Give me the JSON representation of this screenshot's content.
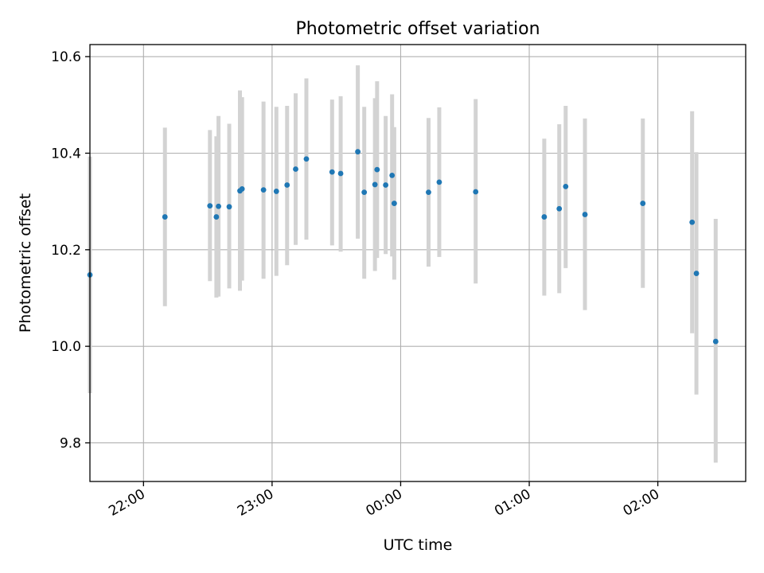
{
  "chart_data": {
    "type": "scatter",
    "title": "Photometric offset variation",
    "xlabel": "UTC time",
    "ylabel": "Photometric offset",
    "x_axis": {
      "kind": "time",
      "range": [
        "21:35",
        "02:41"
      ],
      "ticks": [
        "22:00",
        "23:00",
        "00:00",
        "01:00",
        "02:00"
      ],
      "tick_rotation_deg": 30
    },
    "y_axis": {
      "range": [
        9.72,
        10.625
      ],
      "ticks": [
        9.8,
        10.0,
        10.2,
        10.4,
        10.6
      ],
      "tick_labels": [
        "9.8",
        "10.0",
        "10.2",
        "10.4",
        "10.6"
      ]
    },
    "grid": true,
    "legend": "none",
    "colors": {
      "points": "#1f77b4",
      "errorbars": "#d3d3d3"
    },
    "series": [
      {
        "points": [
          {
            "t": "21:35",
            "y": 10.148,
            "lo": 9.903,
            "hi": 10.393
          },
          {
            "t": "22:10",
            "y": 10.268,
            "lo": 10.083,
            "hi": 10.453
          },
          {
            "t": "22:31",
            "y": 10.291,
            "lo": 10.135,
            "hi": 10.448
          },
          {
            "t": "22:34",
            "y": 10.268,
            "lo": 10.101,
            "hi": 10.435
          },
          {
            "t": "22:35",
            "y": 10.29,
            "lo": 10.103,
            "hi": 10.477
          },
          {
            "t": "22:40",
            "y": 10.289,
            "lo": 10.12,
            "hi": 10.461
          },
          {
            "t": "22:45",
            "y": 10.322,
            "lo": 10.115,
            "hi": 10.53
          },
          {
            "t": "22:46",
            "y": 10.326,
            "lo": 10.136,
            "hi": 10.516
          },
          {
            "t": "22:56",
            "y": 10.324,
            "lo": 10.14,
            "hi": 10.507
          },
          {
            "t": "23:02",
            "y": 10.321,
            "lo": 10.146,
            "hi": 10.496
          },
          {
            "t": "23:07",
            "y": 10.334,
            "lo": 10.168,
            "hi": 10.498
          },
          {
            "t": "23:11",
            "y": 10.367,
            "lo": 10.21,
            "hi": 10.524
          },
          {
            "t": "23:16",
            "y": 10.388,
            "lo": 10.221,
            "hi": 10.555
          },
          {
            "t": "23:28",
            "y": 10.361,
            "lo": 10.209,
            "hi": 10.511
          },
          {
            "t": "23:32",
            "y": 10.358,
            "lo": 10.196,
            "hi": 10.518
          },
          {
            "t": "23:40",
            "y": 10.403,
            "lo": 10.223,
            "hi": 10.582
          },
          {
            "t": "23:43",
            "y": 10.319,
            "lo": 10.14,
            "hi": 10.496
          },
          {
            "t": "23:48",
            "y": 10.335,
            "lo": 10.156,
            "hi": 10.514
          },
          {
            "t": "23:49",
            "y": 10.366,
            "lo": 10.183,
            "hi": 10.549
          },
          {
            "t": "23:53",
            "y": 10.334,
            "lo": 10.191,
            "hi": 10.477
          },
          {
            "t": "23:56",
            "y": 10.354,
            "lo": 10.186,
            "hi": 10.522
          },
          {
            "t": "23:57",
            "y": 10.296,
            "lo": 10.138,
            "hi": 10.454
          },
          {
            "t": "00:13",
            "y": 10.319,
            "lo": 10.165,
            "hi": 10.473
          },
          {
            "t": "00:18",
            "y": 10.34,
            "lo": 10.185,
            "hi": 10.495
          },
          {
            "t": "00:35",
            "y": 10.32,
            "lo": 10.13,
            "hi": 10.512
          },
          {
            "t": "01:07",
            "y": 10.268,
            "lo": 10.105,
            "hi": 10.43
          },
          {
            "t": "01:14",
            "y": 10.285,
            "lo": 10.11,
            "hi": 10.46
          },
          {
            "t": "01:17",
            "y": 10.331,
            "lo": 10.162,
            "hi": 10.498
          },
          {
            "t": "01:26",
            "y": 10.273,
            "lo": 10.075,
            "hi": 10.472
          },
          {
            "t": "01:53",
            "y": 10.296,
            "lo": 10.121,
            "hi": 10.472
          },
          {
            "t": "02:16",
            "y": 10.257,
            "lo": 10.027,
            "hi": 10.487
          },
          {
            "t": "02:18",
            "y": 10.151,
            "lo": 9.9,
            "hi": 10.402
          },
          {
            "t": "02:27",
            "y": 10.01,
            "lo": 9.759,
            "hi": 10.264
          }
        ]
      }
    ]
  }
}
